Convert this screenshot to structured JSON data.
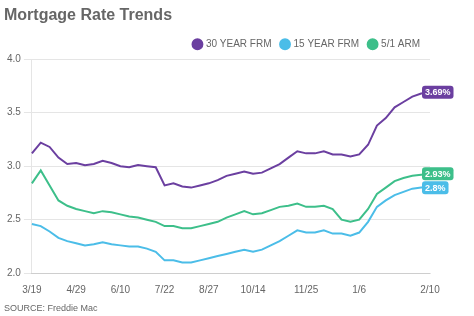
{
  "chart_data": {
    "type": "line",
    "title": "Mortgage Rate Trends",
    "source": "SOURCE: Freddie Mac",
    "categories": [
      "3/19",
      null,
      null,
      null,
      null,
      "4/29",
      null,
      null,
      null,
      null,
      "6/10",
      null,
      null,
      null,
      null,
      "7/22",
      null,
      null,
      null,
      null,
      "8/27",
      null,
      null,
      null,
      null,
      "10/14",
      null,
      null,
      null,
      null,
      null,
      "11/25",
      null,
      null,
      null,
      null,
      null,
      "1/6",
      null,
      null,
      null,
      null,
      null,
      null,
      null,
      "2/10"
    ],
    "series": [
      {
        "name": "30 YEAR FRM",
        "color": "#6b3fa0",
        "values": [
          3.12,
          3.22,
          3.18,
          3.08,
          3.02,
          3.03,
          3.01,
          3.02,
          3.05,
          3.03,
          3.0,
          2.99,
          3.01,
          3.0,
          2.99,
          2.82,
          2.84,
          2.81,
          2.8,
          2.82,
          2.84,
          2.87,
          2.91,
          2.93,
          2.95,
          2.93,
          2.94,
          2.98,
          3.02,
          3.08,
          3.14,
          3.12,
          3.12,
          3.14,
          3.11,
          3.11,
          3.09,
          3.11,
          3.2,
          3.38,
          3.45,
          3.55,
          3.6,
          3.65,
          3.68,
          3.69
        ]
      },
      {
        "name": "15 YEAR FRM",
        "color": "#4bbde8",
        "values": [
          2.46,
          2.44,
          2.39,
          2.33,
          2.3,
          2.28,
          2.26,
          2.27,
          2.29,
          2.27,
          2.26,
          2.25,
          2.25,
          2.23,
          2.2,
          2.12,
          2.12,
          2.1,
          2.1,
          2.12,
          2.14,
          2.16,
          2.18,
          2.2,
          2.22,
          2.2,
          2.22,
          2.26,
          2.3,
          2.35,
          2.4,
          2.38,
          2.38,
          2.4,
          2.37,
          2.37,
          2.35,
          2.38,
          2.48,
          2.62,
          2.68,
          2.73,
          2.76,
          2.79,
          2.8,
          2.8
        ]
      },
      {
        "name": "5/1 ARM",
        "color": "#3dbf8a",
        "values": [
          2.84,
          2.96,
          2.82,
          2.68,
          2.63,
          2.6,
          2.58,
          2.56,
          2.58,
          2.57,
          2.55,
          2.53,
          2.52,
          2.5,
          2.48,
          2.44,
          2.44,
          2.42,
          2.42,
          2.44,
          2.46,
          2.48,
          2.52,
          2.55,
          2.58,
          2.55,
          2.56,
          2.59,
          2.62,
          2.63,
          2.65,
          2.62,
          2.62,
          2.63,
          2.6,
          2.5,
          2.48,
          2.5,
          2.6,
          2.74,
          2.8,
          2.86,
          2.89,
          2.91,
          2.92,
          2.93
        ]
      }
    ],
    "ylim": [
      2.0,
      4.0
    ],
    "yticks": [
      {
        "value": 2.0,
        "label": "2.0"
      },
      {
        "value": 2.5,
        "label": "2.5"
      },
      {
        "value": 3.0,
        "label": "3.0"
      },
      {
        "value": 3.5,
        "label": "3.5"
      },
      {
        "value": 4.0,
        "label": "4.0"
      }
    ],
    "grid": true,
    "legend": "top",
    "annotations": [
      {
        "text": "3.69%",
        "x": "2/10",
        "y": 3.69,
        "color": "#6b3fa0",
        "text_color": "#ffffff"
      },
      {
        "text": "2.93%",
        "x": "2/10",
        "y": 2.93,
        "color": "#3dbf8a",
        "text_color": "#ffffff"
      },
      {
        "text": "2.8%",
        "x": "2/10",
        "y": 2.8,
        "color": "#4bbde8",
        "text_color": "#ffffff"
      }
    ]
  }
}
